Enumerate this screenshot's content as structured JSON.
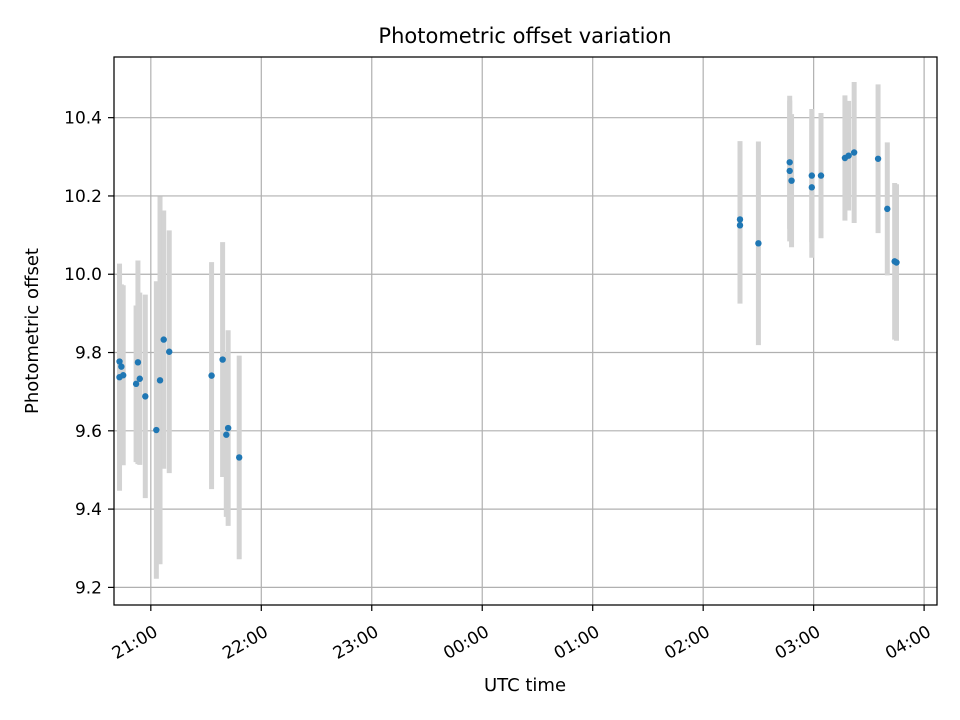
{
  "chart_data": {
    "type": "scatter",
    "title": "Photometric offset variation",
    "xlabel": "UTC time",
    "ylabel": "Photometric offset",
    "x_unit": "UTC clock time (hh:mm), night spanning midnight",
    "xlim": [
      "20:40",
      "04:07"
    ],
    "ylim": [
      9.155,
      10.555
    ],
    "grid": true,
    "x_ticks": [
      "21:00",
      "22:00",
      "23:00",
      "00:00",
      "01:00",
      "02:00",
      "03:00",
      "04:00"
    ],
    "y_ticks": [
      "9.2",
      "9.4",
      "9.6",
      "9.8",
      "10.0",
      "10.2",
      "10.4"
    ],
    "point_color": "#1f77b4",
    "errorbar_color": "#d3d3d3",
    "points": [
      {
        "x": "20:43",
        "y": 9.777,
        "err": 0.24
      },
      {
        "x": "20:43",
        "y": 9.737,
        "err": 0.29
      },
      {
        "x": "20:44",
        "y": 9.764,
        "err": 0.21
      },
      {
        "x": "20:45",
        "y": 9.742,
        "err": 0.23
      },
      {
        "x": "20:52",
        "y": 9.72,
        "err": 0.2
      },
      {
        "x": "20:53",
        "y": 9.775,
        "err": 0.26
      },
      {
        "x": "20:54",
        "y": 9.733,
        "err": 0.22
      },
      {
        "x": "20:57",
        "y": 9.688,
        "err": 0.26
      },
      {
        "x": "21:03",
        "y": 9.602,
        "err": 0.38
      },
      {
        "x": "21:05",
        "y": 9.729,
        "err": 0.47
      },
      {
        "x": "21:07",
        "y": 9.833,
        "err": 0.33
      },
      {
        "x": "21:10",
        "y": 9.802,
        "err": 0.31
      },
      {
        "x": "21:33",
        "y": 9.741,
        "err": 0.29
      },
      {
        "x": "21:39",
        "y": 9.782,
        "err": 0.3
      },
      {
        "x": "21:41",
        "y": 9.59,
        "err": 0.21
      },
      {
        "x": "21:42",
        "y": 9.607,
        "err": 0.25
      },
      {
        "x": "21:48",
        "y": 9.532,
        "err": 0.26
      },
      {
        "x": "02:20",
        "y": 10.14,
        "err": 0.2
      },
      {
        "x": "02:20",
        "y": 10.125,
        "err": 0.2
      },
      {
        "x": "02:30",
        "y": 10.079,
        "err": 0.26
      },
      {
        "x": "02:47",
        "y": 10.286,
        "err": 0.17
      },
      {
        "x": "02:47",
        "y": 10.264,
        "err": 0.18
      },
      {
        "x": "02:48",
        "y": 10.239,
        "err": 0.17
      },
      {
        "x": "02:59",
        "y": 10.252,
        "err": 0.17
      },
      {
        "x": "02:59",
        "y": 10.222,
        "err": 0.18
      },
      {
        "x": "03:04",
        "y": 10.252,
        "err": 0.16
      },
      {
        "x": "03:17",
        "y": 10.297,
        "err": 0.16
      },
      {
        "x": "03:19",
        "y": 10.303,
        "err": 0.14
      },
      {
        "x": "03:22",
        "y": 10.311,
        "err": 0.18
      },
      {
        "x": "03:35",
        "y": 10.295,
        "err": 0.19
      },
      {
        "x": "03:40",
        "y": 10.167,
        "err": 0.17
      },
      {
        "x": "03:44",
        "y": 10.033,
        "err": 0.2
      },
      {
        "x": "03:45",
        "y": 10.03,
        "err": 0.2
      }
    ]
  }
}
